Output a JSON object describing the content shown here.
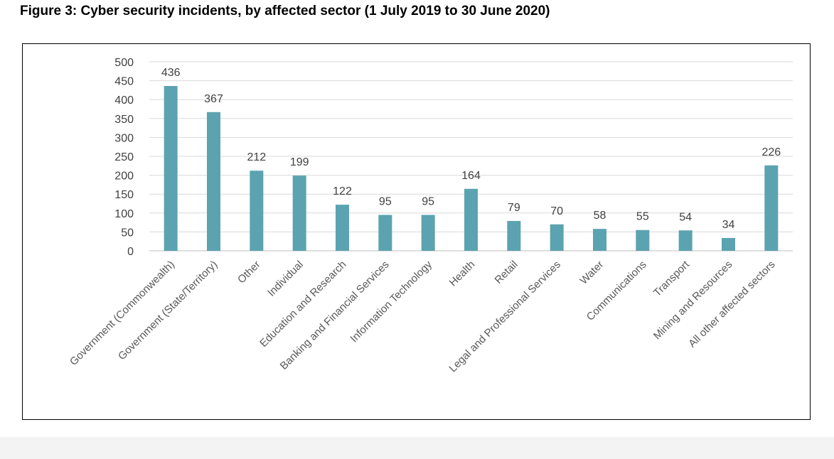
{
  "title": "Figure 3: Cyber security incidents, by affected sector (1 July 2019 to 30 June 2020)",
  "chart_data": {
    "type": "bar",
    "title": "Figure 3: Cyber security incidents, by affected sector (1 July 2019 to 30 June 2020)",
    "xlabel": "",
    "ylabel": "",
    "ylim": [
      0,
      500
    ],
    "yticks": [
      0,
      50,
      100,
      150,
      200,
      250,
      300,
      350,
      400,
      450,
      500
    ],
    "grid": true,
    "legend": "none",
    "bar_color": "#5ba3b0",
    "gridline_color": "#d9d9d9",
    "categories": [
      "Government (Commonwealth)",
      "Government (State/Territory)",
      "Other",
      "Individual",
      "Education and Research",
      "Banking and Financial Services",
      "Information Technology",
      "Health",
      "Retail",
      "Legal and Professional Services",
      "Water",
      "Communications",
      "Transport",
      "Mining and Resources",
      "All other affected sectors"
    ],
    "values": [
      436,
      367,
      212,
      199,
      122,
      95,
      95,
      164,
      79,
      70,
      58,
      55,
      54,
      34,
      226
    ]
  }
}
